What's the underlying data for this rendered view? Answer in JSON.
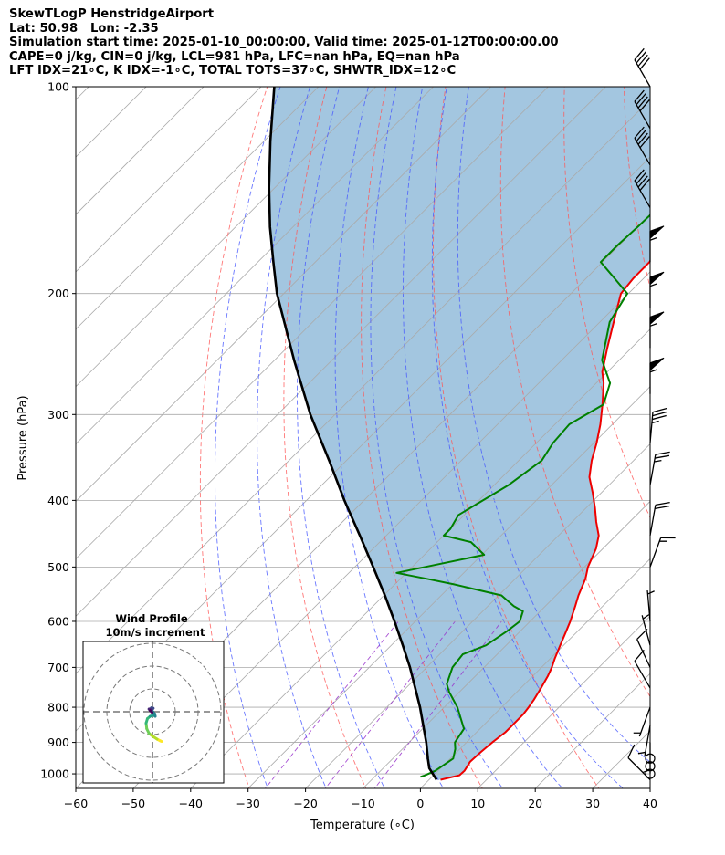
{
  "header": {
    "lines": [
      "SkewTLogP HenstridgeAirport",
      "Lat: 50.98   Lon: -2.35",
      "Simulation start time: 2025-01-10_00:00:00, Valid time: 2025-01-12T00:00:00.00",
      "CAPE=0 j/kg, CIN=0 j/kg, LCL=981 hPa, LFC=nan hPa, EQ=nan hPa",
      "LFT IDX=21∘C, K IDX=-1∘C, TOTAL TOTS=37∘C, SHWTR_IDX=12∘C"
    ]
  },
  "colors": {
    "temperature": "#ee0000",
    "dewpoint": "#008000",
    "parcel": "#000000",
    "fill": "#a3c6e0",
    "dry_adiabat": "#ff5555",
    "moist_adiabat": "#4455ff",
    "mixing_ratio": "#9933cc",
    "isotherm": "#aaaaaa"
  },
  "chart_data": {
    "type": "skewt",
    "xlabel": "Temperature (∘C)",
    "ylabel": "Pressure (hPa)",
    "xlim": [
      -60,
      40
    ],
    "ylim": [
      1050,
      100
    ],
    "x_ticks": [
      -60,
      -50,
      -40,
      -30,
      -20,
      -10,
      0,
      10,
      20,
      30,
      40
    ],
    "y_ticks": [
      1000,
      900,
      800,
      700,
      600,
      500,
      400,
      300,
      200,
      100
    ],
    "grid": true,
    "series": [
      {
        "key": "temperature",
        "p": [
          1020,
          1005,
          990,
          960,
          930,
          900,
          870,
          850,
          820,
          800,
          780,
          750,
          720,
          700,
          680,
          650,
          620,
          600,
          570,
          550,
          520,
          500,
          470,
          450,
          430,
          410,
          390,
          370,
          350,
          330,
          310,
          290,
          270,
          260,
          240,
          220,
          200,
          190,
          180,
          170,
          160,
          150,
          145,
          140,
          135,
          130,
          125,
          120,
          115,
          110,
          105,
          100
        ],
        "t": [
          2.0,
          4.5,
          4.6,
          4.0,
          4.2,
          4.5,
          5.0,
          5.0,
          5.0,
          4.7,
          4.3,
          3.5,
          2.6,
          1.8,
          0.8,
          -0.6,
          -2.0,
          -3.0,
          -4.8,
          -6.1,
          -7.8,
          -9.4,
          -11.2,
          -13.0,
          -15.8,
          -18.5,
          -21.5,
          -24.8,
          -27.3,
          -29.5,
          -32.1,
          -35.2,
          -38.7,
          -40.9,
          -44.2,
          -47.6,
          -51.3,
          -51.8,
          -51.8,
          -53.0,
          -54.8,
          -58.2,
          -59.7,
          -62.3,
          -63.6,
          -64.3,
          -65.1,
          -66.5,
          -69.0,
          -70.2,
          -71.7,
          -73.0
        ]
      },
      {
        "key": "dewpoint",
        "p": [
          1010,
          1005,
          990,
          950,
          920,
          900,
          860,
          800,
          760,
          740,
          700,
          670,
          650,
          620,
          600,
          580,
          570,
          560,
          550,
          530,
          520,
          510,
          480,
          460,
          450,
          440,
          420,
          380,
          350,
          330,
          310,
          290,
          270,
          250,
          220,
          200,
          190,
          180,
          170,
          160,
          150,
          140,
          130,
          125,
          120,
          115,
          110,
          105,
          100
        ],
        "t": [
          -2.0,
          -1.5,
          -0.5,
          0.5,
          -0.8,
          -2.0,
          -2.8,
          -7.7,
          -11.8,
          -13.6,
          -15.5,
          -16.0,
          -13.5,
          -12.3,
          -11.8,
          -13.0,
          -15.5,
          -17.5,
          -19.5,
          -29.7,
          -35.5,
          -41.7,
          -29.6,
          -34.1,
          -40.0,
          -40.0,
          -41.0,
          -37.5,
          -36.0,
          -37.1,
          -37.5,
          -35.0,
          -37.6,
          -43.0,
          -48.3,
          -50.2,
          -55.1,
          -60.3,
          -60.3,
          -60.0,
          -59.8,
          -60.0,
          -60.0,
          -59.5,
          -59.1,
          -59.0,
          -58.6,
          -58.5,
          -58.0
        ]
      },
      {
        "key": "parcel",
        "p": [
          1020,
          981,
          950,
          900,
          850,
          800,
          750,
          700,
          650,
          600,
          550,
          500,
          450,
          400,
          350,
          300,
          250,
          200,
          180,
          160,
          140,
          120,
          100
        ],
        "t": [
          1.3,
          -2.0,
          -3.9,
          -7.0,
          -10.5,
          -14.2,
          -18.4,
          -22.9,
          -28.0,
          -33.6,
          -39.8,
          -46.8,
          -54.6,
          -63.4,
          -73.0,
          -84.3,
          -96.6,
          -111.2,
          -117.3,
          -124.0,
          -131.1,
          -138.9,
          -147.7
        ]
      }
    ],
    "wind_barbs": [
      {
        "p": 1020,
        "speed_kt": 10,
        "dir": 315
      },
      {
        "p": 1000,
        "speed_kt": 0,
        "dir": 0
      },
      {
        "p": 975,
        "speed_kt": 0,
        "dir": 0
      },
      {
        "p": 950,
        "speed_kt": 0,
        "dir": 0
      },
      {
        "p": 900,
        "speed_kt": 5,
        "dir": 180
      },
      {
        "p": 850,
        "speed_kt": 5,
        "dir": 190
      },
      {
        "p": 800,
        "speed_kt": 5,
        "dir": 200
      },
      {
        "p": 750,
        "speed_kt": 10,
        "dir": 330
      },
      {
        "p": 700,
        "speed_kt": 10,
        "dir": 335
      },
      {
        "p": 650,
        "speed_kt": 5,
        "dir": 345
      },
      {
        "p": 600,
        "speed_kt": 5,
        "dir": 355
      },
      {
        "p": 500,
        "speed_kt": 15,
        "dir": 20
      },
      {
        "p": 450,
        "speed_kt": 20,
        "dir": 10
      },
      {
        "p": 380,
        "speed_kt": 25,
        "dir": 10
      },
      {
        "p": 330,
        "speed_kt": 35,
        "dir": 5
      },
      {
        "p": 280,
        "speed_kt": 55,
        "dir": 0
      },
      {
        "p": 240,
        "speed_kt": 55,
        "dir": 0
      },
      {
        "p": 210,
        "speed_kt": 55,
        "dir": 0
      },
      {
        "p": 180,
        "speed_kt": 55,
        "dir": 0
      },
      {
        "p": 150,
        "speed_kt": 40,
        "dir": 330
      },
      {
        "p": 130,
        "speed_kt": 40,
        "dir": 330
      },
      {
        "p": 115,
        "speed_kt": 40,
        "dir": 330
      },
      {
        "p": 100,
        "speed_kt": 40,
        "dir": 330
      }
    ],
    "hodograph": {
      "title": "Wind Profile",
      "subtitle": "10m/s increment",
      "u": [
        4.0,
        3.5,
        2.0,
        0.5,
        -1.5,
        -2.5,
        -2.8,
        -2.2,
        -1.0,
        0.5,
        1.2,
        1.0,
        0.0,
        -1.0,
        -0.5,
        0.3,
        -0.5,
        -1.5,
        -1.0,
        -0.2
      ],
      "v": [
        -13.0,
        -12.8,
        -12.0,
        -11.0,
        -9.5,
        -7.5,
        -5.0,
        -3.0,
        -2.0,
        -1.5,
        -2.0,
        -1.0,
        0.2,
        1.0,
        1.7,
        1.5,
        0.8,
        1.2,
        0.5,
        -0.3
      ],
      "rings": [
        1,
        2,
        3
      ]
    }
  }
}
